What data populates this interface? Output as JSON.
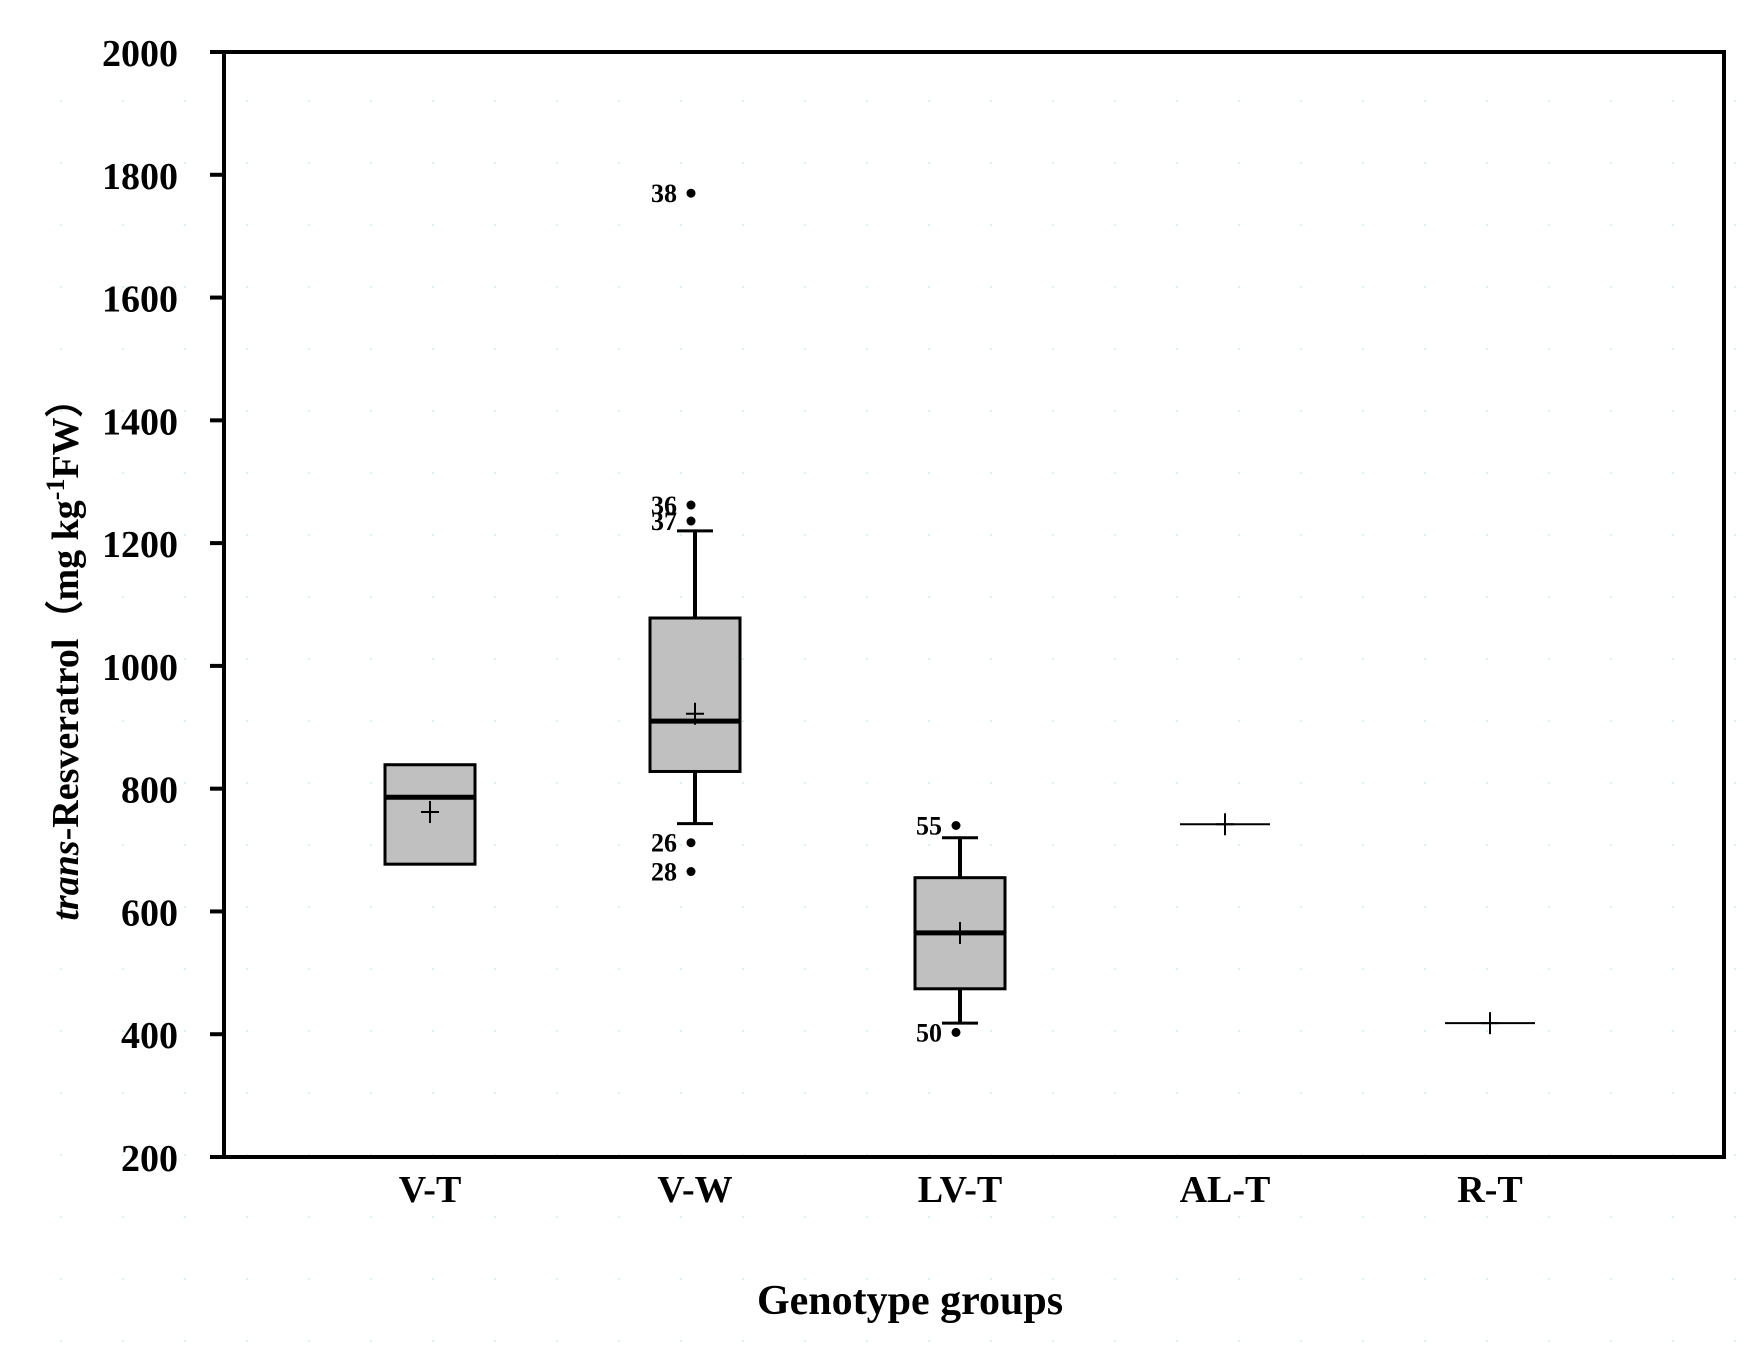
{
  "chart_data": {
    "type": "box",
    "title": "",
    "xlabel": "Genotype groups",
    "ylabel": {
      "italic_prefix": "trans",
      "main": "-Resveratrol（mg kg",
      "sup": "-1",
      "suffix": "FW）"
    },
    "ylim": [
      200,
      2000
    ],
    "yticks": [
      200,
      400,
      600,
      800,
      1000,
      1200,
      1400,
      1600,
      1800,
      2000
    ],
    "categories": [
      "V-T",
      "V-W",
      "LV-T",
      "AL-T",
      "R-T"
    ],
    "box_color": "#c0c0c0",
    "series": [
      {
        "category": "V-T",
        "q1": 677,
        "median": 786,
        "q3": 839,
        "mean": 762,
        "whisker_low": null,
        "whisker_high": null,
        "outliers": []
      },
      {
        "category": "V-W",
        "q1": 828,
        "median": 910,
        "q3": 1078,
        "mean": 922,
        "whisker_low": 743,
        "whisker_high": 1220,
        "outliers": [
          {
            "label": "38",
            "value": 1770
          },
          {
            "label": "36",
            "value": 1262
          },
          {
            "label": "37",
            "value": 1236
          },
          {
            "label": "26",
            "value": 712
          },
          {
            "label": "28",
            "value": 665
          }
        ]
      },
      {
        "category": "LV-T",
        "q1": 474,
        "median": 565,
        "q3": 655,
        "mean": 565,
        "whisker_low": 418,
        "whisker_high": 720,
        "outliers": [
          {
            "label": "55",
            "value": 740
          },
          {
            "label": "50",
            "value": 403
          }
        ]
      },
      {
        "category": "AL-T",
        "q1": null,
        "median": 742,
        "q3": null,
        "mean": 742,
        "whisker_low": null,
        "whisker_high": null,
        "outliers": []
      },
      {
        "category": "R-T",
        "q1": null,
        "median": 418,
        "q3": null,
        "mean": 418,
        "whisker_low": null,
        "whisker_high": null,
        "outliers": []
      }
    ]
  }
}
